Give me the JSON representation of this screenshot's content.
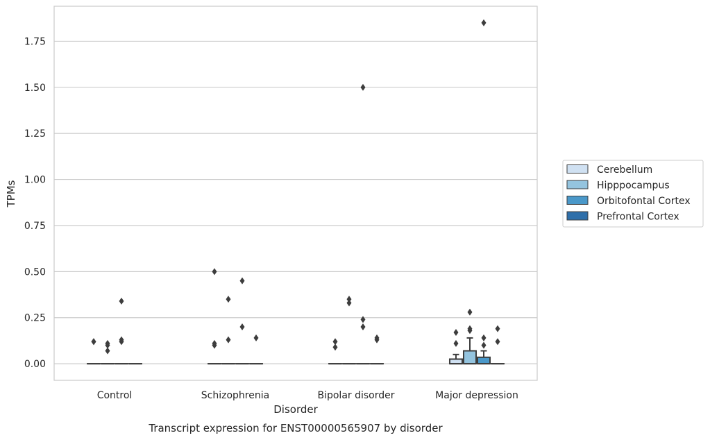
{
  "chart_data": {
    "type": "boxplot",
    "caption": "Transcript expression for ENST00000565907 by disorder",
    "xlabel": "Disorder",
    "ylabel": "TPMs",
    "ylim": [
      -0.09,
      1.94
    ],
    "yticks": [
      0.0,
      0.25,
      0.5,
      0.75,
      1.0,
      1.25,
      1.5,
      1.75
    ],
    "ytick_labels": [
      "0.00",
      "0.25",
      "0.50",
      "0.75",
      "1.00",
      "1.25",
      "1.50",
      "1.75"
    ],
    "grid": true,
    "legend_position": "right",
    "categories": [
      "Control",
      "Schizophrenia",
      "Bipolar disorder",
      "Major depression"
    ],
    "series": [
      {
        "name": "Cerebellum",
        "color": "#d0e1f2",
        "boxes": [
          {
            "q1": 0,
            "median": 0,
            "q3": 0,
            "whislo": 0,
            "whishi": 0,
            "fliers": [
              0.12,
              0.12
            ]
          },
          {
            "q1": 0,
            "median": 0,
            "q3": 0,
            "whislo": 0,
            "whishi": 0,
            "fliers": [
              0.1,
              0.11,
              0.5
            ]
          },
          {
            "q1": 0,
            "median": 0,
            "q3": 0,
            "whislo": 0,
            "whishi": 0,
            "fliers": [
              0.09,
              0.12
            ]
          },
          {
            "q1": 0,
            "median": 0,
            "q3": 0.025,
            "whislo": 0,
            "whishi": 0.05,
            "fliers": [
              0.11,
              0.17
            ]
          }
        ]
      },
      {
        "name": "Hipppocampus",
        "color": "#94c4df",
        "boxes": [
          {
            "q1": 0,
            "median": 0,
            "q3": 0,
            "whislo": 0,
            "whishi": 0,
            "fliers": [
              0.07,
              0.1,
              0.11
            ]
          },
          {
            "q1": 0,
            "median": 0,
            "q3": 0,
            "whislo": 0,
            "whishi": 0,
            "fliers": [
              0.13,
              0.35
            ]
          },
          {
            "q1": 0,
            "median": 0,
            "q3": 0,
            "whislo": 0,
            "whishi": 0,
            "fliers": [
              0.33,
              0.35
            ]
          },
          {
            "q1": 0,
            "median": 0,
            "q3": 0.07,
            "whislo": 0,
            "whishi": 0.14,
            "fliers": [
              0.18,
              0.19,
              0.28
            ]
          }
        ]
      },
      {
        "name": "Orbitofontal Cortex",
        "color": "#4a98c9",
        "boxes": [
          {
            "q1": 0,
            "median": 0,
            "q3": 0,
            "whislo": 0,
            "whishi": 0,
            "fliers": [
              0.12,
              0.13,
              0.34
            ]
          },
          {
            "q1": 0,
            "median": 0,
            "q3": 0,
            "whislo": 0,
            "whishi": 0,
            "fliers": [
              0.2,
              0.45
            ]
          },
          {
            "q1": 0,
            "median": 0,
            "q3": 0,
            "whislo": 0,
            "whishi": 0,
            "fliers": [
              0.2,
              0.24,
              1.5
            ]
          },
          {
            "q1": 0,
            "median": 0,
            "q3": 0.035,
            "whislo": 0,
            "whishi": 0.07,
            "fliers": [
              0.1,
              0.14,
              1.85
            ]
          }
        ]
      },
      {
        "name": "Prefrontal Cortex",
        "color": "#2e6faa",
        "boxes": [
          {
            "q1": 0,
            "median": 0,
            "q3": 0,
            "whislo": 0,
            "whishi": 0,
            "fliers": []
          },
          {
            "q1": 0,
            "median": 0,
            "q3": 0,
            "whislo": 0,
            "whishi": 0,
            "fliers": [
              0.14
            ]
          },
          {
            "q1": 0,
            "median": 0,
            "q3": 0,
            "whislo": 0,
            "whishi": 0,
            "fliers": [
              0.13,
              0.14
            ]
          },
          {
            "q1": 0,
            "median": 0,
            "q3": 0,
            "whislo": 0,
            "whishi": 0,
            "fliers": [
              0.12,
              0.19
            ]
          }
        ]
      }
    ]
  },
  "style": {
    "grid_color": "#cccccc",
    "frame_color": "#cccccc",
    "line_color": "#3d3d3d",
    "text_color": "#262626"
  }
}
